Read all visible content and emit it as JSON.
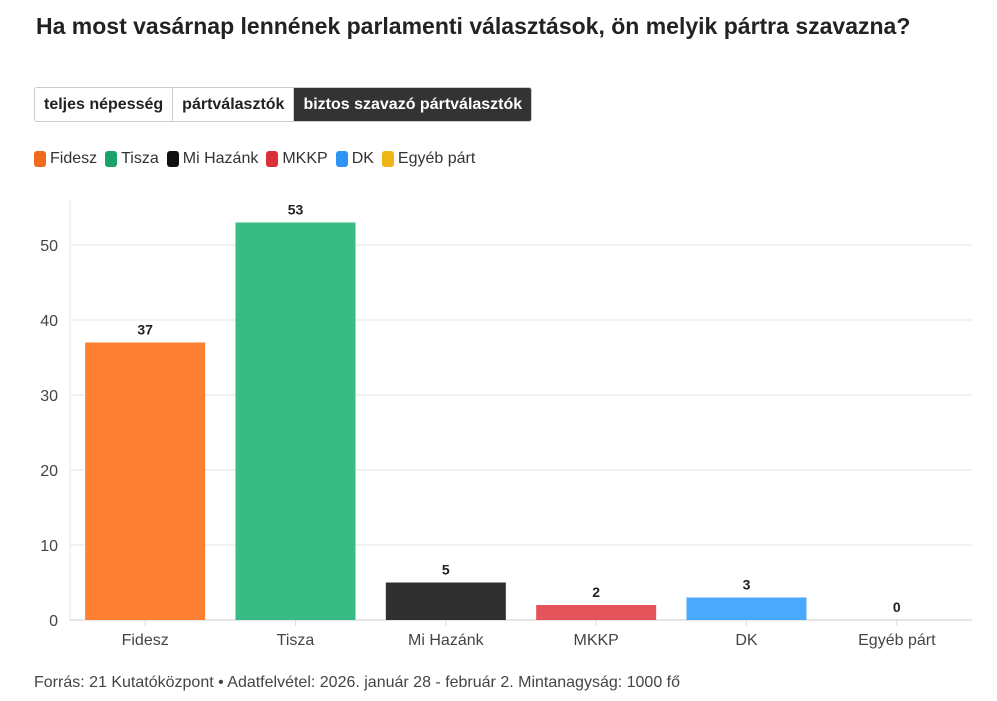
{
  "title": "Ha most vasárnap lennének parlamenti választások, ön melyik pártra szavazna?",
  "tabs": [
    {
      "label": "teljes népesség",
      "active": false
    },
    {
      "label": "pártválasztók",
      "active": false
    },
    {
      "label": "biztos szavazó pártválasztók",
      "active": true
    }
  ],
  "footer": "Forrás: 21 Kutatóközpont • Adatfelvétel: 2026. január 28 - február 2. Mintanagyság: 1000 fő",
  "chart_data": {
    "type": "bar",
    "title": "Ha most vasárnap lennének parlamenti választások, ön melyik pártra szavazna?",
    "xlabel": "",
    "ylabel": "",
    "categories": [
      "Fidesz",
      "Tisza",
      "Mi Hazánk",
      "MKKP",
      "DK",
      "Egyéb párt"
    ],
    "values": [
      37,
      53,
      5,
      2,
      3,
      0
    ],
    "colors": [
      "#fe8133",
      "#38bb84",
      "#303030",
      "#e5545a",
      "#4aa8fd",
      "#f1b712"
    ],
    "legend_colors": [
      "#f26b1d",
      "#1ba267",
      "#111111",
      "#d9303a",
      "#2d93f5",
      "#f0b417"
    ],
    "ylim": [
      0,
      56
    ],
    "yticks": [
      0,
      10,
      20,
      30,
      40,
      50
    ],
    "grid": true,
    "legend_position": "top-left"
  }
}
